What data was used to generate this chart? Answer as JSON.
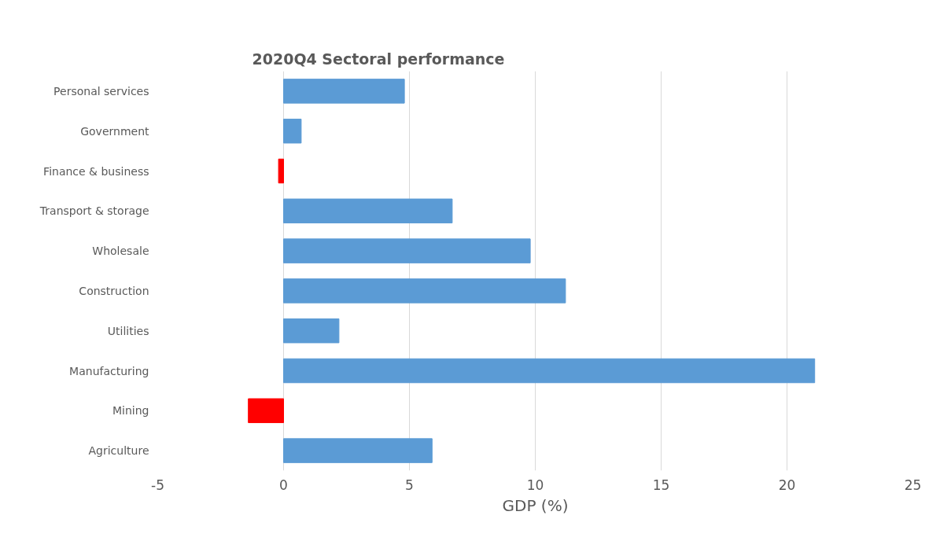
{
  "chart_data": {
    "type": "bar",
    "orientation": "horizontal",
    "title": "2020Q4 Sectoral performance",
    "xlabel": "GDP (%)",
    "categories": [
      "Personal services",
      "Government",
      "Finance & business",
      "Transport & storage",
      "Wholesale",
      "Construction",
      "Utilities",
      "Manufacturing",
      "Mining",
      "Agriculture"
    ],
    "values": [
      4.8,
      0.7,
      -0.2,
      6.7,
      9.8,
      11.2,
      2.2,
      21.1,
      -1.4,
      5.9
    ],
    "colors": [
      "#5b9bd5",
      "#5b9bd5",
      "#ff0000",
      "#5b9bd5",
      "#5b9bd5",
      "#5b9bd5",
      "#5b9bd5",
      "#5b9bd5",
      "#ff0000",
      "#5b9bd5"
    ],
    "xlim": [
      -5,
      25
    ],
    "xticks": [
      -5,
      0,
      5,
      10,
      15,
      20,
      25
    ],
    "grid": "x"
  }
}
